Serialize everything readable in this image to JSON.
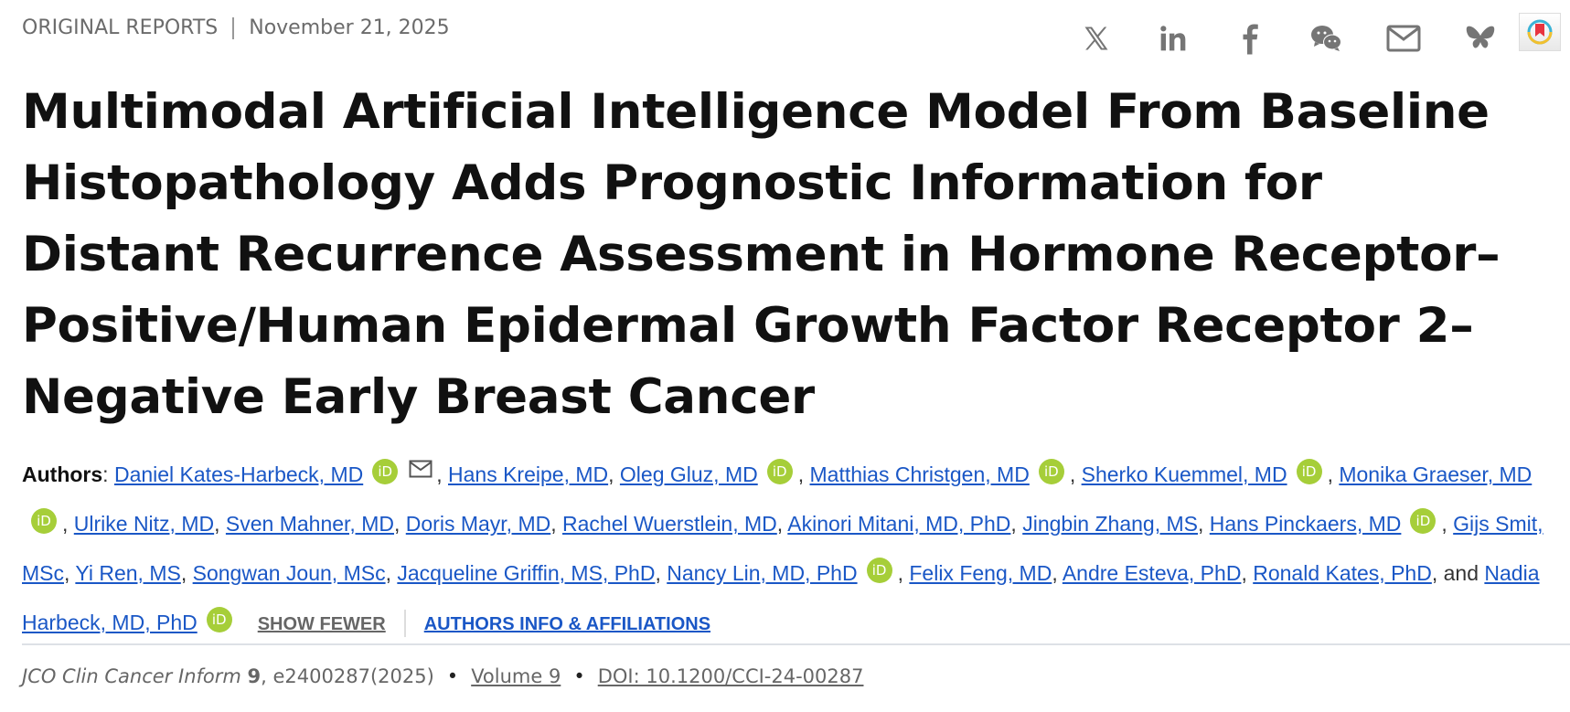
{
  "header": {
    "section": "ORIGINAL REPORTS",
    "date": "November 21, 2025"
  },
  "share_icons": [
    "x-icon",
    "linkedin-icon",
    "facebook-icon",
    "wechat-icon",
    "email-icon",
    "bluesky-icon",
    "bookmark-app-icon"
  ],
  "title": "Multimodal Artificial Intelligence Model From Baseline Histopathology Adds Prognostic Information for Distant Recurrence Assessment in Hormone Receptor–Positive/Human Epidermal Growth Factor Receptor 2–Negative Early Breast Cancer",
  "authors_label": "Authors",
  "authors": [
    {
      "name": "Daniel Kates-Harbeck, MD",
      "orcid": true,
      "email": true
    },
    {
      "name": "Hans Kreipe, MD",
      "orcid": false
    },
    {
      "name": "Oleg Gluz, MD",
      "orcid": true
    },
    {
      "name": "Matthias Christgen, MD",
      "orcid": true
    },
    {
      "name": "Sherko Kuemmel, MD",
      "orcid": true
    },
    {
      "name": "Monika Graeser, MD",
      "orcid": true
    },
    {
      "name": "Ulrike Nitz, MD",
      "orcid": false
    },
    {
      "name": "Sven Mahner, MD",
      "orcid": false
    },
    {
      "name": "Doris Mayr, MD",
      "orcid": false
    },
    {
      "name": "Rachel Wuerstlein, MD",
      "orcid": false
    },
    {
      "name": "Akinori Mitani, MD, PhD",
      "orcid": false
    },
    {
      "name": "Jingbin Zhang, MS",
      "orcid": false
    },
    {
      "name": "Hans Pinckaers, MD",
      "orcid": true
    },
    {
      "name": "Gijs Smit, MSc",
      "orcid": false
    },
    {
      "name": "Yi Ren, MS",
      "orcid": false
    },
    {
      "name": "Songwan Joun, MSc",
      "orcid": false
    },
    {
      "name": "Jacqueline Griffin, MS, PhD",
      "orcid": false
    },
    {
      "name": "Nancy Lin, MD, PhD",
      "orcid": true
    },
    {
      "name": "Felix Feng, MD",
      "orcid": false
    },
    {
      "name": "Andre Esteva, PhD",
      "orcid": false
    },
    {
      "name": "Ronald Kates, PhD",
      "orcid": false
    },
    {
      "name": "Nadia Harbeck, MD, PhD",
      "orcid": true
    }
  ],
  "orcid_label": "iD",
  "and_word": "and",
  "show_fewer": "SHOW FEWER",
  "authors_info": "AUTHORS INFO & AFFILIATIONS",
  "citation": {
    "journal": "JCO Clin Cancer Inform",
    "volume_num": "9",
    "rest": ", e2400287(2025)",
    "volume_link": "Volume 9",
    "doi": "DOI: 10.1200/CCI-24-00287",
    "bullet": "•"
  }
}
